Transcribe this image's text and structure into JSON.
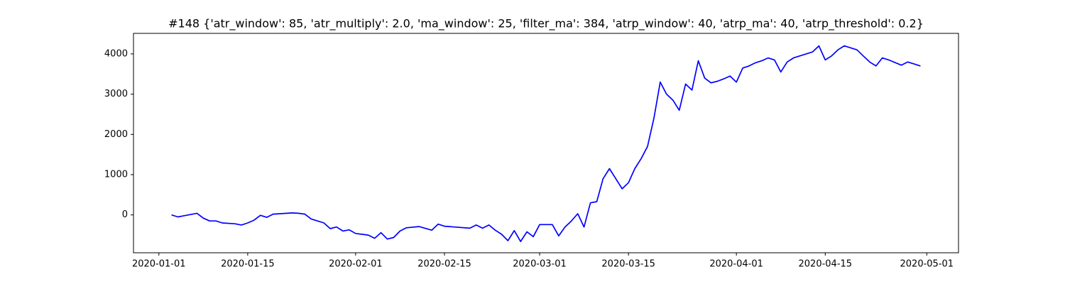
{
  "chart_data": {
    "type": "line",
    "title": "#148 {'atr_window': 85, 'atr_multiply': 2.0, 'ma_window': 25, 'filter_ma': 384, 'atrp_window': 40, 'atrp_ma': 40, 'atrp_threshold': 0.2}",
    "color": "#0000ff",
    "x": [
      "2020-01-03",
      "2020-01-04",
      "2020-01-05",
      "2020-01-07",
      "2020-01-08",
      "2020-01-09",
      "2020-01-10",
      "2020-01-11",
      "2020-01-13",
      "2020-01-14",
      "2020-01-15",
      "2020-01-16",
      "2020-01-17",
      "2020-01-18",
      "2020-01-19",
      "2020-01-22",
      "2020-01-23",
      "2020-01-24",
      "2020-01-25",
      "2020-01-26",
      "2020-01-27",
      "2020-01-28",
      "2020-01-29",
      "2020-01-30",
      "2020-01-31",
      "2020-02-01",
      "2020-02-03",
      "2020-02-04",
      "2020-02-05",
      "2020-02-06",
      "2020-02-07",
      "2020-02-08",
      "2020-02-09",
      "2020-02-11",
      "2020-02-13",
      "2020-02-14",
      "2020-02-15",
      "2020-02-19",
      "2020-02-20",
      "2020-02-21",
      "2020-02-22",
      "2020-02-23",
      "2020-02-24",
      "2020-02-25",
      "2020-02-26",
      "2020-02-27",
      "2020-02-28",
      "2020-02-29",
      "2020-03-01",
      "2020-03-03",
      "2020-03-04",
      "2020-03-05",
      "2020-03-06",
      "2020-03-07",
      "2020-03-08",
      "2020-03-09",
      "2020-03-10",
      "2020-03-11",
      "2020-03-12",
      "2020-03-13",
      "2020-03-14",
      "2020-03-15",
      "2020-03-16",
      "2020-03-17",
      "2020-03-18",
      "2020-03-19",
      "2020-03-20",
      "2020-03-21",
      "2020-03-22",
      "2020-03-23",
      "2020-03-24",
      "2020-03-25",
      "2020-03-26",
      "2020-03-27",
      "2020-03-28",
      "2020-03-29",
      "2020-03-30",
      "2020-03-31",
      "2020-04-01",
      "2020-04-02",
      "2020-04-03",
      "2020-04-04",
      "2020-04-05",
      "2020-04-06",
      "2020-04-07",
      "2020-04-08",
      "2020-04-09",
      "2020-04-10",
      "2020-04-13",
      "2020-04-14",
      "2020-04-15",
      "2020-04-16",
      "2020-04-17",
      "2020-04-18",
      "2020-04-20",
      "2020-04-21",
      "2020-04-22",
      "2020-04-23",
      "2020-04-24",
      "2020-04-25",
      "2020-04-27",
      "2020-04-28",
      "2020-04-29",
      "2020-04-30"
    ],
    "values": [
      0,
      -50,
      -20,
      40,
      -80,
      -150,
      -150,
      -200,
      -220,
      -250,
      -200,
      -130,
      -10,
      -60,
      20,
      50,
      40,
      20,
      -100,
      -150,
      -200,
      -340,
      -300,
      -400,
      -370,
      -460,
      -500,
      -580,
      -440,
      -600,
      -560,
      -400,
      -320,
      -290,
      -380,
      -230,
      -280,
      -330,
      -250,
      -330,
      -250,
      -380,
      -480,
      -640,
      -390,
      -660,
      -420,
      -540,
      -240,
      -240,
      -520,
      -300,
      -150,
      30,
      -300,
      300,
      330,
      900,
      1150,
      900,
      650,
      800,
      1150,
      1400,
      1700,
      2400,
      3300,
      3000,
      2850,
      2600,
      3250,
      3100,
      3830,
      3400,
      3280,
      3320,
      3380,
      3450,
      3300,
      3650,
      3700,
      3780,
      3830,
      3900,
      3850,
      3550,
      3800,
      3900,
      4050,
      4200,
      3850,
      3950,
      4100,
      4200,
      4100,
      3950,
      3800,
      3700,
      3900,
      3850,
      3720,
      3800,
      3750,
      3700
    ],
    "xlim": [
      "2019-12-28",
      "2020-05-06"
    ],
    "xticks": [
      "2020-01-01",
      "2020-01-15",
      "2020-02-01",
      "2020-02-15",
      "2020-03-01",
      "2020-03-15",
      "2020-04-01",
      "2020-04-15",
      "2020-05-01"
    ],
    "ylim": [
      -940,
      4510
    ],
    "yticks": [
      0,
      1000,
      2000,
      3000,
      4000
    ]
  }
}
